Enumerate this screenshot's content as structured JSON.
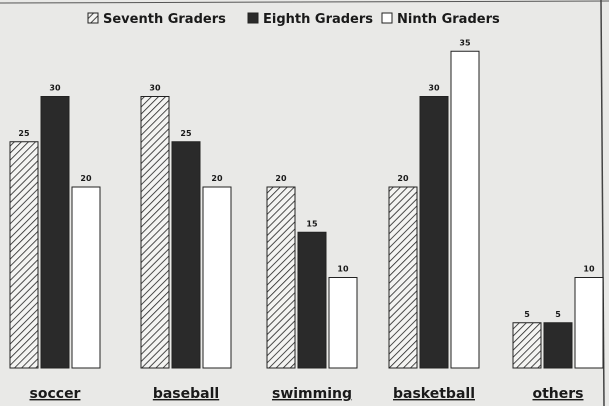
{
  "chart_data": {
    "type": "bar",
    "title": "",
    "xlabel": "",
    "ylabel": "",
    "ylim": [
      0,
      35
    ],
    "grid": false,
    "legend_position": "top",
    "categories": [
      "soccer",
      "baseball",
      "swimming",
      "basketball",
      "others"
    ],
    "series": [
      {
        "name": "Seventh Graders",
        "values": [
          25,
          30,
          20,
          20,
          5
        ],
        "style": "hatched"
      },
      {
        "name": "Eighth Graders",
        "values": [
          30,
          25,
          15,
          30,
          5
        ],
        "style": "solid",
        "color": "#2a2a2a"
      },
      {
        "name": "Ninth Graders",
        "values": [
          20,
          20,
          10,
          35,
          10
        ],
        "style": "outline",
        "color": "#ffffff"
      }
    ]
  }
}
